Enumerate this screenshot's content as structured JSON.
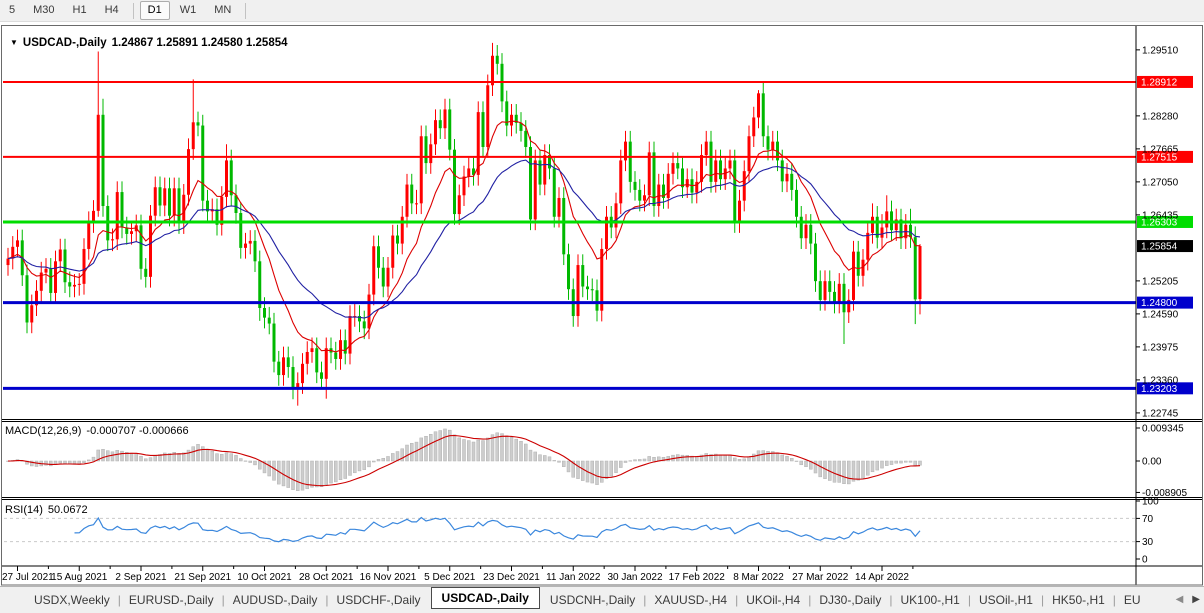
{
  "toolbar": {
    "timeframes": [
      {
        "label": "5",
        "active": false
      },
      {
        "label": "M30",
        "active": false
      },
      {
        "label": "H1",
        "active": false
      },
      {
        "label": "H4",
        "active": false
      },
      {
        "label": "D1",
        "active": true
      },
      {
        "label": "W1",
        "active": false
      },
      {
        "label": "MN",
        "active": false
      }
    ],
    "separator_after_indexes": [
      3,
      6
    ]
  },
  "chart": {
    "dropdown_icon": "▼",
    "title_symbol": "USDCAD-,Daily",
    "title_ohlc": "1.24867 1.25891 1.24580 1.25854"
  },
  "indicators": {
    "macd": {
      "name": "MACD(12,26,9)",
      "values": "-0.000707 -0.000666",
      "axis": [
        {
          "label": "0.009345",
          "value": 0.009345
        },
        {
          "label": "0.00",
          "value": 0
        },
        {
          "label": "-0.008905",
          "value": -0.008905
        }
      ]
    },
    "rsi": {
      "name": "RSI(14)",
      "value": "50.0672",
      "axis": [
        {
          "label": "100",
          "value": 100
        },
        {
          "label": "70",
          "value": 70
        },
        {
          "label": "30",
          "value": 30
        },
        {
          "label": "0",
          "value": 0
        }
      ],
      "levels": [
        70,
        30
      ]
    }
  },
  "chart_data": {
    "type": "candlestick",
    "symbol": "USDCAD-",
    "timeframe": "Daily",
    "current_bar": {
      "open": 1.24867,
      "high": 1.25891,
      "low": 1.2458,
      "close": 1.25854
    },
    "price_axis": {
      "top": 1.2988,
      "bottom": 1.2265,
      "ticks": [
        "1.29510",
        "1.28280",
        "1.27665",
        "1.27050",
        "1.26435",
        "1.25205",
        "1.24590",
        "1.23975",
        "1.23360",
        "1.22745"
      ]
    },
    "hlines": [
      {
        "label": "1.28912",
        "price": 1.28912,
        "color": "#ff0000",
        "width": 2
      },
      {
        "label": "1.27515",
        "price": 1.27515,
        "color": "#ff0000",
        "width": 2
      },
      {
        "label": "1.26303",
        "price": 1.26303,
        "color": "#00dd00",
        "width": 3
      },
      {
        "label": "1.24800",
        "price": 1.248,
        "color": "#0000cc",
        "width": 3
      },
      {
        "label": "1.23203",
        "price": 1.23203,
        "color": "#0000cc",
        "width": 3
      }
    ],
    "current_price_label": {
      "label": "1.25854",
      "price": 1.25854,
      "bg": "#000000"
    },
    "x_labels": [
      "27 Jul 2021",
      "15 Aug 2021",
      "2 Sep 2021",
      "21 Sep 2021",
      "10 Oct 2021",
      "28 Oct 2021",
      "16 Nov 2021",
      "5 Dec 2021",
      "23 Dec 2021",
      "11 Jan 2022",
      "30 Jan 2022",
      "17 Feb 2022",
      "8 Mar 2022",
      "27 Mar 2022",
      "14 Apr 2022"
    ],
    "candles": [
      [
        1.255,
        1.2582,
        1.253,
        1.2562
      ],
      [
        1.2562,
        1.2604,
        1.2542,
        1.2584
      ],
      [
        1.2584,
        1.2616,
        1.2564,
        1.2596
      ],
      [
        1.2596,
        1.2616,
        1.2511,
        1.2531
      ],
      [
        1.2531,
        1.2551,
        1.2423,
        1.2443
      ],
      [
        1.2443,
        1.2495,
        1.2423,
        1.2475
      ],
      [
        1.2475,
        1.2522,
        1.2455,
        1.2502
      ],
      [
        1.2502,
        1.2556,
        1.2482,
        1.2536
      ],
      [
        1.2536,
        1.2563,
        1.2516,
        1.2543
      ],
      [
        1.2543,
        1.2563,
        1.2478,
        1.2498
      ],
      [
        1.2498,
        1.2577,
        1.2478,
        1.2557
      ],
      [
        1.2557,
        1.2599,
        1.2537,
        1.2579
      ],
      [
        1.2579,
        1.2599,
        1.2498,
        1.2518
      ],
      [
        1.2518,
        1.2538,
        1.249,
        1.251
      ],
      [
        1.251,
        1.2533,
        1.249,
        1.2513
      ],
      [
        1.2513,
        1.2535,
        1.2493,
        1.2515
      ],
      [
        1.2515,
        1.26,
        1.2495,
        1.258
      ],
      [
        1.258,
        1.265,
        1.256,
        1.263
      ],
      [
        1.263,
        1.2671,
        1.261,
        1.2651
      ],
      [
        1.2651,
        1.2948,
        1.264,
        1.283
      ],
      [
        1.283,
        1.286,
        1.264,
        1.266
      ],
      [
        1.266,
        1.268,
        1.2576,
        1.2596
      ],
      [
        1.2596,
        1.2618,
        1.2576,
        1.2598
      ],
      [
        1.2598,
        1.2706,
        1.2578,
        1.2686
      ],
      [
        1.2686,
        1.2706,
        1.26,
        1.262
      ],
      [
        1.262,
        1.264,
        1.2588,
        1.2608
      ],
      [
        1.2608,
        1.2633,
        1.2588,
        1.2613
      ],
      [
        1.2613,
        1.2644,
        1.2593,
        1.2624
      ],
      [
        1.2624,
        1.2644,
        1.2523,
        1.2543
      ],
      [
        1.2543,
        1.2563,
        1.2508,
        1.2528
      ],
      [
        1.2528,
        1.2662,
        1.2508,
        1.2642
      ],
      [
        1.2642,
        1.2715,
        1.2622,
        1.2695
      ],
      [
        1.2695,
        1.2715,
        1.2641,
        1.2661
      ],
      [
        1.2661,
        1.2713,
        1.2641,
        1.2693
      ],
      [
        1.2693,
        1.2713,
        1.2622,
        1.2642
      ],
      [
        1.2642,
        1.2713,
        1.2622,
        1.2693
      ],
      [
        1.2693,
        1.2713,
        1.2608,
        1.2628
      ],
      [
        1.2628,
        1.2701,
        1.2608,
        1.2681
      ],
      [
        1.2681,
        1.2786,
        1.2661,
        1.2766
      ],
      [
        1.2766,
        1.2896,
        1.2746,
        1.2816
      ],
      [
        1.2816,
        1.2836,
        1.279,
        1.281
      ],
      [
        1.281,
        1.283,
        1.265,
        1.267
      ],
      [
        1.267,
        1.269,
        1.263,
        1.265
      ],
      [
        1.265,
        1.2674,
        1.263,
        1.2654
      ],
      [
        1.2654,
        1.2674,
        1.2605,
        1.2625
      ],
      [
        1.2625,
        1.2697,
        1.2605,
        1.2677
      ],
      [
        1.2677,
        1.2775,
        1.2657,
        1.2745
      ],
      [
        1.2745,
        1.2765,
        1.266,
        1.268
      ],
      [
        1.268,
        1.27,
        1.2627,
        1.2647
      ],
      [
        1.2647,
        1.2667,
        1.2562,
        1.2582
      ],
      [
        1.2582,
        1.261,
        1.2562,
        1.259
      ],
      [
        1.259,
        1.2615,
        1.257,
        1.2595
      ],
      [
        1.2595,
        1.2615,
        1.2537,
        1.2557
      ],
      [
        1.2557,
        1.2577,
        1.2446,
        1.247
      ],
      [
        1.247,
        1.249,
        1.2432,
        1.2452
      ],
      [
        1.2452,
        1.2472,
        1.2421,
        1.2441
      ],
      [
        1.2441,
        1.2461,
        1.235,
        1.237
      ],
      [
        1.237,
        1.239,
        1.2325,
        1.2345
      ],
      [
        1.2345,
        1.2398,
        1.2325,
        1.2378
      ],
      [
        1.2378,
        1.2398,
        1.234,
        1.236
      ],
      [
        1.236,
        1.238,
        1.23,
        1.232
      ],
      [
        1.232,
        1.235,
        1.2288,
        1.233
      ],
      [
        1.233,
        1.2386,
        1.231,
        1.2366
      ],
      [
        1.2366,
        1.2408,
        1.2346,
        1.2388
      ],
      [
        1.2388,
        1.2415,
        1.2368,
        1.2395
      ],
      [
        1.2395,
        1.2415,
        1.233,
        1.235
      ],
      [
        1.235,
        1.237,
        1.2318,
        1.2338
      ],
      [
        1.2338,
        1.2415,
        1.2301,
        1.2395
      ],
      [
        1.2395,
        1.2415,
        1.2367,
        1.2387
      ],
      [
        1.2387,
        1.2407,
        1.2355,
        1.2375
      ],
      [
        1.2375,
        1.243,
        1.2355,
        1.241
      ],
      [
        1.241,
        1.243,
        1.2365,
        1.2385
      ],
      [
        1.2385,
        1.2475,
        1.2365,
        1.2455
      ],
      [
        1.2455,
        1.2478,
        1.2435,
        1.2455
      ],
      [
        1.2455,
        1.2475,
        1.2425,
        1.2445
      ],
      [
        1.2445,
        1.2465,
        1.2412,
        1.2432
      ],
      [
        1.2432,
        1.2515,
        1.2412,
        1.2495
      ],
      [
        1.2495,
        1.2605,
        1.2475,
        1.2585
      ],
      [
        1.2585,
        1.2605,
        1.2525,
        1.2545
      ],
      [
        1.2545,
        1.2565,
        1.249,
        1.251
      ],
      [
        1.251,
        1.2565,
        1.249,
        1.2545
      ],
      [
        1.2545,
        1.2625,
        1.2525,
        1.2605
      ],
      [
        1.2605,
        1.2625,
        1.257,
        1.259
      ],
      [
        1.259,
        1.266,
        1.257,
        1.264
      ],
      [
        1.264,
        1.272,
        1.262,
        1.27
      ],
      [
        1.27,
        1.272,
        1.2645,
        1.2665
      ],
      [
        1.2665,
        1.269,
        1.2645,
        1.2665
      ],
      [
        1.2665,
        1.281,
        1.2645,
        1.279
      ],
      [
        1.279,
        1.281,
        1.272,
        1.274
      ],
      [
        1.274,
        1.2795,
        1.272,
        1.2775
      ],
      [
        1.2775,
        1.284,
        1.2755,
        1.282
      ],
      [
        1.282,
        1.284,
        1.2785,
        1.2805
      ],
      [
        1.2805,
        1.286,
        1.2785,
        1.284
      ],
      [
        1.284,
        1.286,
        1.2745,
        1.2765
      ],
      [
        1.2765,
        1.2785,
        1.2625,
        1.2645
      ],
      [
        1.2645,
        1.27,
        1.2625,
        1.268
      ],
      [
        1.268,
        1.2735,
        1.266,
        1.2715
      ],
      [
        1.2715,
        1.275,
        1.2695,
        1.273
      ],
      [
        1.273,
        1.275,
        1.2698,
        1.2718
      ],
      [
        1.2718,
        1.2855,
        1.2698,
        1.2835
      ],
      [
        1.2835,
        1.2855,
        1.275,
        1.277
      ],
      [
        1.277,
        1.2905,
        1.275,
        1.2885
      ],
      [
        1.2885,
        1.2964,
        1.2865,
        1.294
      ],
      [
        1.294,
        1.296,
        1.2905,
        1.2925
      ],
      [
        1.2925,
        1.2945,
        1.2835,
        1.2855
      ],
      [
        1.2855,
        1.2875,
        1.279,
        1.281
      ],
      [
        1.281,
        1.285,
        1.279,
        1.283
      ],
      [
        1.283,
        1.285,
        1.2795,
        1.2815
      ],
      [
        1.2815,
        1.2835,
        1.278,
        1.28
      ],
      [
        1.28,
        1.282,
        1.275,
        1.277
      ],
      [
        1.277,
        1.279,
        1.2615,
        1.2635
      ],
      [
        1.2635,
        1.2765,
        1.2615,
        1.2745
      ],
      [
        1.2745,
        1.2765,
        1.268,
        1.27
      ],
      [
        1.27,
        1.2775,
        1.268,
        1.2755
      ],
      [
        1.2755,
        1.2775,
        1.271,
        1.273
      ],
      [
        1.273,
        1.275,
        1.262,
        1.264
      ],
      [
        1.264,
        1.2695,
        1.262,
        1.2675
      ],
      [
        1.2675,
        1.2695,
        1.255,
        1.257
      ],
      [
        1.257,
        1.259,
        1.2485,
        1.2505
      ],
      [
        1.2505,
        1.2525,
        1.2435,
        1.2455
      ],
      [
        1.2455,
        1.257,
        1.2435,
        1.255
      ],
      [
        1.255,
        1.257,
        1.249,
        1.251
      ],
      [
        1.251,
        1.253,
        1.2485,
        1.2505
      ],
      [
        1.2505,
        1.2525,
        1.2483,
        1.2503
      ],
      [
        1.2503,
        1.2523,
        1.2445,
        1.2465
      ],
      [
        1.2465,
        1.26,
        1.2445,
        1.258
      ],
      [
        1.258,
        1.266,
        1.256,
        1.264
      ],
      [
        1.264,
        1.266,
        1.26,
        1.262
      ],
      [
        1.262,
        1.2685,
        1.26,
        1.2665
      ],
      [
        1.2665,
        1.2765,
        1.2645,
        1.2745
      ],
      [
        1.2745,
        1.28,
        1.2725,
        1.278
      ],
      [
        1.278,
        1.28,
        1.2685,
        1.2705
      ],
      [
        1.2705,
        1.2725,
        1.267,
        1.269
      ],
      [
        1.269,
        1.271,
        1.265,
        1.267
      ],
      [
        1.267,
        1.27,
        1.265,
        1.268
      ],
      [
        1.268,
        1.278,
        1.266,
        1.276
      ],
      [
        1.276,
        1.278,
        1.264,
        1.266
      ],
      [
        1.266,
        1.272,
        1.264,
        1.27
      ],
      [
        1.27,
        1.272,
        1.2655,
        1.2675
      ],
      [
        1.2675,
        1.274,
        1.2655,
        1.272
      ],
      [
        1.272,
        1.276,
        1.27,
        1.274
      ],
      [
        1.274,
        1.276,
        1.271,
        1.273
      ],
      [
        1.273,
        1.275,
        1.2675,
        1.2695
      ],
      [
        1.2695,
        1.273,
        1.2675,
        1.271
      ],
      [
        1.271,
        1.273,
        1.2665,
        1.2685
      ],
      [
        1.2685,
        1.2725,
        1.2665,
        1.2705
      ],
      [
        1.2705,
        1.2775,
        1.2685,
        1.2755
      ],
      [
        1.2755,
        1.28,
        1.2735,
        1.278
      ],
      [
        1.278,
        1.28,
        1.2685,
        1.2705
      ],
      [
        1.2705,
        1.2765,
        1.2685,
        1.2745
      ],
      [
        1.2745,
        1.2765,
        1.269,
        1.271
      ],
      [
        1.271,
        1.275,
        1.269,
        1.273
      ],
      [
        1.273,
        1.2765,
        1.271,
        1.2745
      ],
      [
        1.2745,
        1.2765,
        1.261,
        1.263
      ],
      [
        1.263,
        1.269,
        1.261,
        1.267
      ],
      [
        1.267,
        1.2745,
        1.265,
        1.2725
      ],
      [
        1.2725,
        1.281,
        1.2705,
        1.279
      ],
      [
        1.279,
        1.2845,
        1.277,
        1.2825
      ],
      [
        1.2825,
        1.2876,
        1.2805,
        1.287
      ],
      [
        1.287,
        1.289,
        1.277,
        1.279
      ],
      [
        1.279,
        1.281,
        1.2745,
        1.2765
      ],
      [
        1.2765,
        1.28,
        1.2745,
        1.278
      ],
      [
        1.278,
        1.28,
        1.2725,
        1.2745
      ],
      [
        1.2745,
        1.2765,
        1.2686,
        1.2706
      ],
      [
        1.2706,
        1.274,
        1.2686,
        1.272
      ],
      [
        1.272,
        1.274,
        1.267,
        1.269
      ],
      [
        1.269,
        1.271,
        1.262,
        1.264
      ],
      [
        1.264,
        1.266,
        1.258,
        1.26
      ],
      [
        1.26,
        1.2645,
        1.258,
        1.2625
      ],
      [
        1.2625,
        1.2645,
        1.257,
        1.259
      ],
      [
        1.259,
        1.261,
        1.25,
        1.252
      ],
      [
        1.252,
        1.254,
        1.2465,
        1.2485
      ],
      [
        1.2485,
        1.254,
        1.2465,
        1.252
      ],
      [
        1.252,
        1.254,
        1.248,
        1.25
      ],
      [
        1.25,
        1.252,
        1.246,
        1.248
      ],
      [
        1.248,
        1.2535,
        1.246,
        1.2515
      ],
      [
        1.2515,
        1.2535,
        1.2403,
        1.2462
      ],
      [
        1.2462,
        1.2505,
        1.2442,
        1.2485
      ],
      [
        1.2485,
        1.2595,
        1.2465,
        1.2575
      ],
      [
        1.2575,
        1.2595,
        1.251,
        1.253
      ],
      [
        1.253,
        1.258,
        1.251,
        1.256
      ],
      [
        1.256,
        1.263,
        1.254,
        1.261
      ],
      [
        1.261,
        1.2665,
        1.259,
        1.264
      ],
      [
        1.264,
        1.266,
        1.2581,
        1.2601
      ],
      [
        1.2601,
        1.2645,
        1.2581,
        1.262
      ],
      [
        1.262,
        1.268,
        1.26,
        1.265
      ],
      [
        1.265,
        1.267,
        1.2595,
        1.2615
      ],
      [
        1.2615,
        1.2655,
        1.2595,
        1.2635
      ],
      [
        1.2635,
        1.2655,
        1.258,
        1.26
      ],
      [
        1.26,
        1.2645,
        1.258,
        1.2625
      ],
      [
        1.2625,
        1.2655,
        1.2582,
        1.2602
      ],
      [
        1.2602,
        1.2622,
        1.244,
        1.2486
      ],
      [
        1.24867,
        1.25891,
        1.2458,
        1.25854
      ]
    ]
  },
  "tabs": {
    "items": [
      {
        "label": "USDX,Weekly",
        "active": false
      },
      {
        "label": "EURUSD-,Daily",
        "active": false
      },
      {
        "label": "AUDUSD-,Daily",
        "active": false
      },
      {
        "label": "USDCHF-,Daily",
        "active": false
      },
      {
        "label": "USDCAD-,Daily",
        "active": true
      },
      {
        "label": "USDCNH-,Daily",
        "active": false
      },
      {
        "label": "XAUUSD-,H4",
        "active": false
      },
      {
        "label": "UKOil-,H4",
        "active": false
      },
      {
        "label": "DJ30-,Daily",
        "active": false
      },
      {
        "label": "UK100-,H1",
        "active": false
      },
      {
        "label": "USOil-,H1",
        "active": false
      },
      {
        "label": "HK50-,H1",
        "active": false
      },
      {
        "label": "EU",
        "active": false
      }
    ],
    "scroll_left_icon": "◀",
    "scroll_right_icon": "▶"
  },
  "colors": {
    "bull": "#ff0000",
    "bear": "#00b800",
    "ma_fast": "#dd0000",
    "ma_slow": "#2121a3",
    "macd_hist": "#cdcdcd",
    "macd_hist_border": "#b2b2b2",
    "macd_signal": "#cc0000",
    "rsi_line": "#3a87dd",
    "rsi_level": "#c9c9c9",
    "axis_text": "#000000",
    "panel_border": "#000000",
    "frame": "#6a6a6a"
  }
}
